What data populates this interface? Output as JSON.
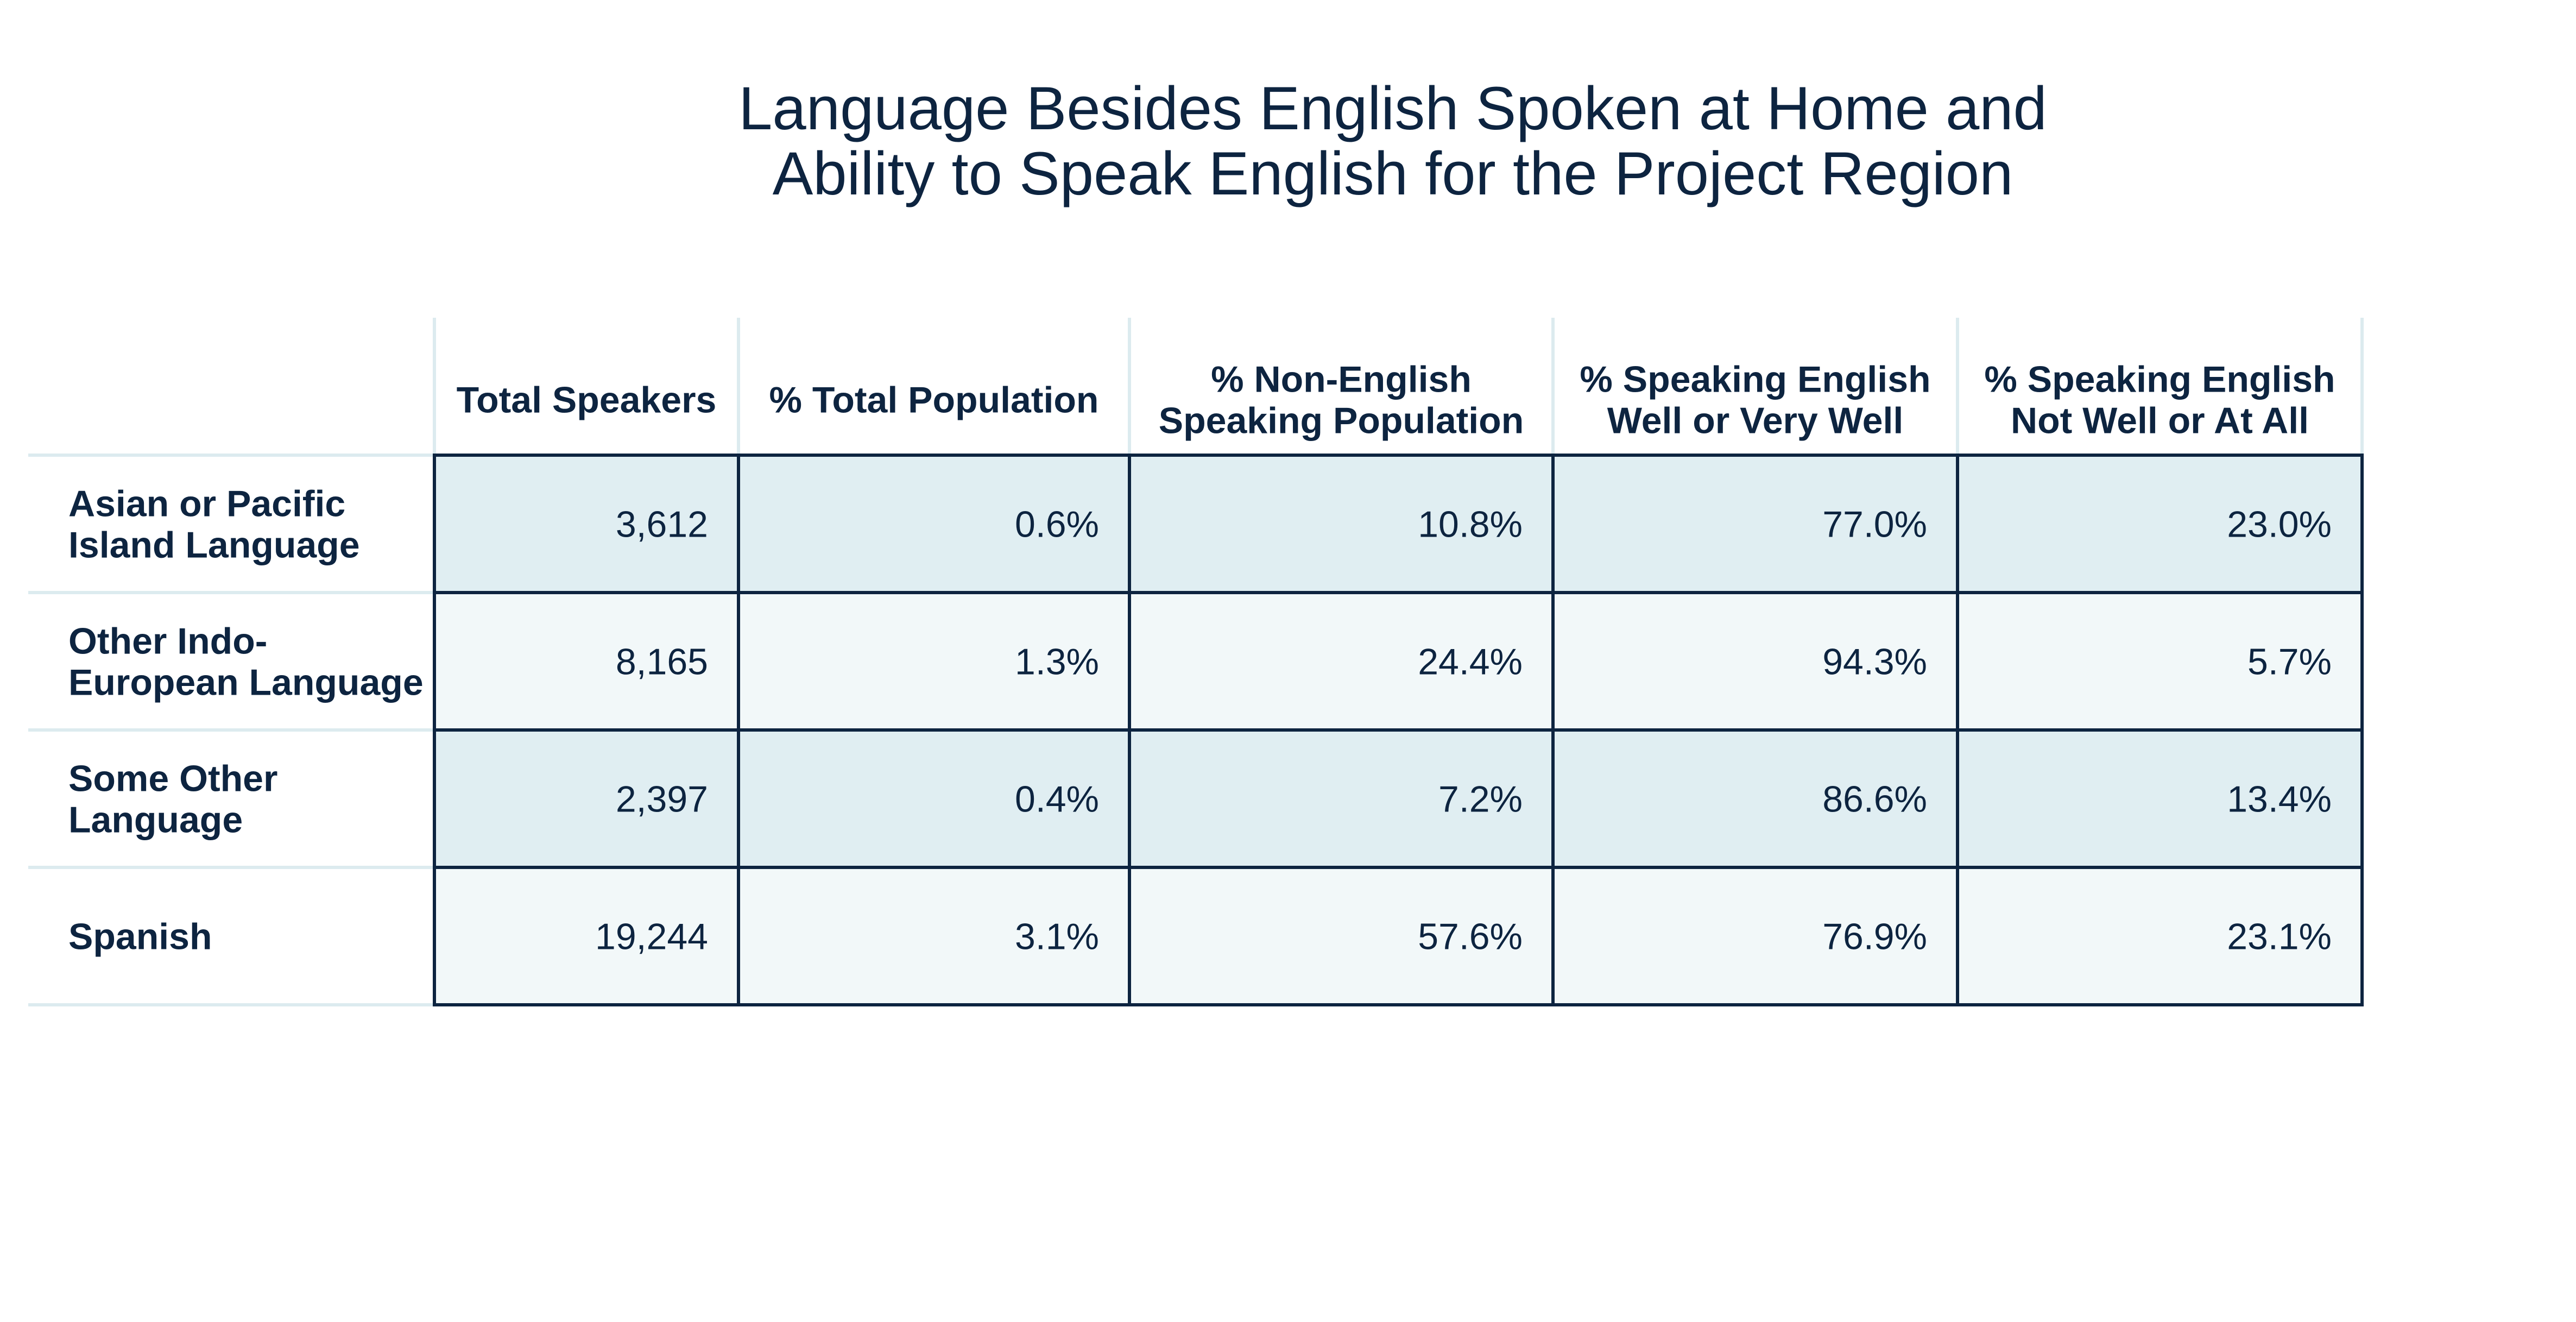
{
  "title_lines": [
    "Language Besides English Spoken at Home and",
    "Ability to Speak English for the Project Region"
  ],
  "colors": {
    "text": "#0d2440",
    "row_dark": "#e0eef2",
    "row_light": "#f2f8f9",
    "border": "#0d2440",
    "faint_line": "#dcebef"
  },
  "chart_data": {
    "type": "table",
    "title": "Language Besides English Spoken at Home and Ability to Speak English for the Project Region",
    "columns": [
      [
        "Total Speakers"
      ],
      [
        "% Total Population"
      ],
      [
        "% Non-English",
        "Speaking Population"
      ],
      [
        "% Speaking English",
        "Well or Very Well"
      ],
      [
        "% Speaking English",
        "Not Well or At All"
      ]
    ],
    "rows": [
      {
        "label_lines": [
          "Asian or Pacific",
          "Island Language"
        ],
        "values": [
          "3,612",
          "0.6%",
          "10.8%",
          "77.0%",
          "23.0%"
        ]
      },
      {
        "label_lines": [
          "Other Indo-",
          "European Language"
        ],
        "values": [
          "8,165",
          "1.3%",
          "24.4%",
          "94.3%",
          "5.7%"
        ]
      },
      {
        "label_lines": [
          "Some Other",
          "Language"
        ],
        "values": [
          "2,397",
          "0.4%",
          "7.2%",
          "86.6%",
          "13.4%"
        ]
      },
      {
        "label_lines": [
          "Spanish"
        ],
        "values": [
          "19,244",
          "3.1%",
          "57.6%",
          "76.9%",
          "23.1%"
        ]
      }
    ]
  }
}
